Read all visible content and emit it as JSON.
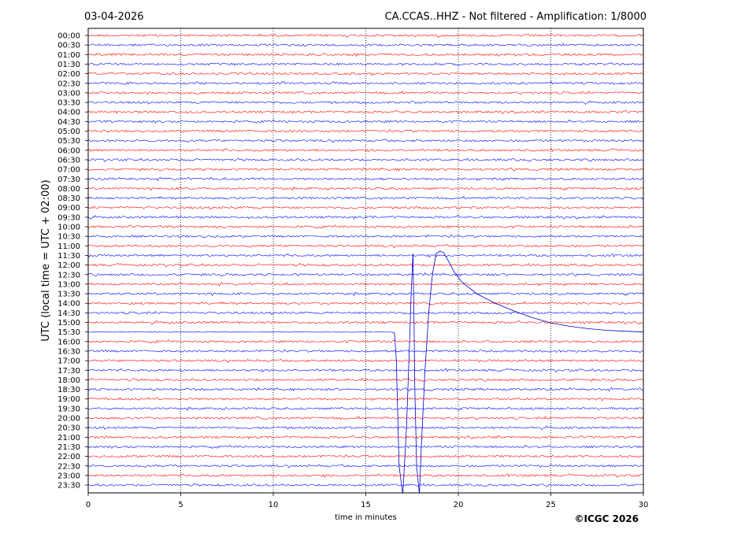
{
  "header": {
    "date": "03-04-2026",
    "title": "CA.CCAS..HHZ - Not filtered - Amplification: 1/8000"
  },
  "footer": {
    "copyright": "©ICGC 2026"
  },
  "colors": {
    "trace_even": "#ff0000",
    "trace_odd": "#0000ff",
    "event": "#0000cc",
    "grid": "#000000",
    "frame": "#000000"
  },
  "chart_data": {
    "type": "line",
    "title": "CA.CCAS..HHZ - Not filtered - Amplification: 1/8000",
    "xlabel": "time in minutes",
    "ylabel": "UTC (local time = UTC + 02:00)",
    "xlim": [
      0,
      30
    ],
    "x_ticks": [
      0,
      5,
      10,
      15,
      20,
      25,
      30
    ],
    "x_tick_labels": [
      "0",
      "5",
      "10",
      "15",
      "20",
      "25",
      "30"
    ],
    "grid": "vertical dotted lines at x ticks",
    "trace_colors": "alternating red / blue per row",
    "rows": [
      "00:00",
      "00:30",
      "01:00",
      "01:30",
      "02:00",
      "02:30",
      "03:00",
      "03:30",
      "04:00",
      "04:30",
      "05:00",
      "05:30",
      "06:00",
      "06:30",
      "07:00",
      "07:30",
      "08:00",
      "08:30",
      "09:00",
      "09:30",
      "10:00",
      "10:30",
      "11:00",
      "11:30",
      "12:00",
      "12:30",
      "13:00",
      "13:30",
      "14:00",
      "14:30",
      "15:00",
      "15:30",
      "16:00",
      "16:30",
      "17:00",
      "17:30",
      "18:00",
      "18:30",
      "19:00",
      "19:30",
      "20:00",
      "20:30",
      "21:00",
      "21:30",
      "22:00",
      "22:30",
      "23:00",
      "23:30"
    ],
    "event": {
      "row": "15:30",
      "description": "large transient starting ~16.5 min on the 15:30 trace",
      "points": [
        [
          0,
          0
        ],
        [
          16.4,
          0
        ],
        [
          16.55,
          -0.1
        ],
        [
          16.65,
          -3
        ],
        [
          16.8,
          -14
        ],
        [
          17.0,
          -17
        ],
        [
          17.2,
          -10
        ],
        [
          17.35,
          -2
        ],
        [
          17.45,
          4
        ],
        [
          17.55,
          8.2
        ],
        [
          17.6,
          2
        ],
        [
          17.65,
          -6
        ],
        [
          17.75,
          -14
        ],
        [
          17.9,
          -17
        ],
        [
          18.0,
          -12
        ],
        [
          18.2,
          -4
        ],
        [
          18.4,
          2
        ],
        [
          18.6,
          6
        ],
        [
          18.8,
          8.2
        ],
        [
          19.0,
          8.45
        ],
        [
          19.2,
          8.3
        ],
        [
          19.5,
          7.3
        ],
        [
          19.8,
          6.2
        ],
        [
          20.2,
          5.2
        ],
        [
          21.0,
          4.0
        ],
        [
          22.0,
          3.0
        ],
        [
          23.0,
          2.2
        ],
        [
          24.0,
          1.5
        ],
        [
          25.0,
          0.95
        ],
        [
          26.0,
          0.6
        ],
        [
          27.0,
          0.35
        ],
        [
          28.0,
          0.18
        ],
        [
          29.0,
          0.08
        ],
        [
          30.0,
          0.0
        ]
      ]
    }
  }
}
